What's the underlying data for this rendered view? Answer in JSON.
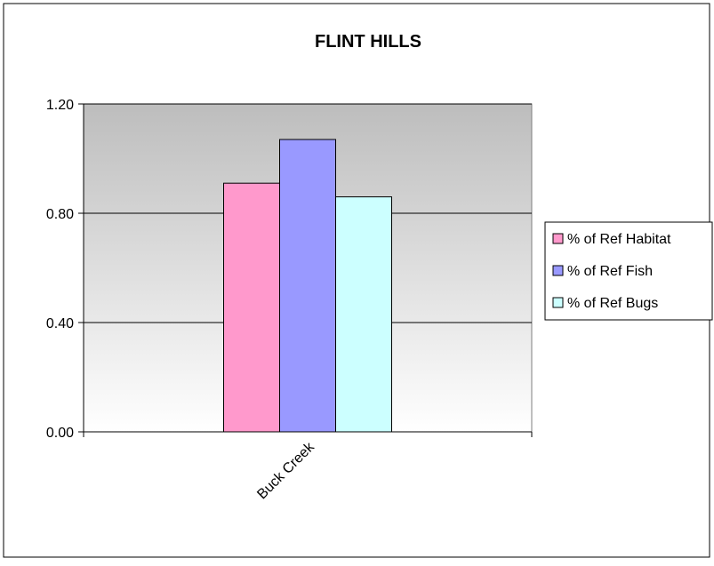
{
  "chart_data": {
    "type": "bar",
    "title": "FLINT HILLS",
    "xlabel": "",
    "ylabel": "",
    "categories": [
      "Buck Creek"
    ],
    "series": [
      {
        "name": "% of Ref Habitat",
        "values": [
          0.91
        ],
        "color": "#FF99CC"
      },
      {
        "name": "% of Ref Fish",
        "values": [
          1.07
        ],
        "color": "#9999FF"
      },
      {
        "name": "% of Ref Bugs",
        "values": [
          0.86
        ],
        "color": "#CCFFFF"
      }
    ],
    "ylim": [
      0,
      1.2
    ],
    "yticks": [
      "0.00",
      "0.40",
      "0.80",
      "1.20"
    ],
    "ytick_values": [
      0,
      0.4,
      0.8,
      1.2
    ],
    "grid": true,
    "legend_position": "right",
    "plot_background": "gray-to-white vertical gradient"
  }
}
